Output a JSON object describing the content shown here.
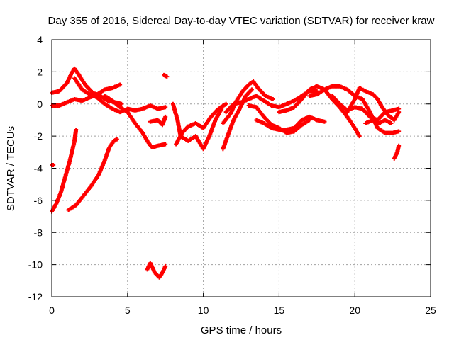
{
  "chart_data": {
    "type": "scatter",
    "title": "Day 355 of 2016, Sidereal Day-to-day VTEC variation (SDTVAR) for receiver kraw",
    "xlabel": "GPS time / hours",
    "ylabel": "SDTVAR / TECUs",
    "xlim": [
      0,
      25
    ],
    "ylim": [
      -12,
      4
    ],
    "xticks": [
      0,
      5,
      10,
      15,
      20,
      25
    ],
    "yticks": [
      -12,
      -10,
      -8,
      -6,
      -4,
      -2,
      0,
      2,
      4
    ],
    "grid": true,
    "marker_color": "#ff0000",
    "series": [
      {
        "name": "s1",
        "points": [
          [
            0.0,
            0.7
          ],
          [
            0.5,
            0.8
          ],
          [
            1.0,
            1.3
          ],
          [
            1.3,
            1.9
          ],
          [
            1.5,
            2.2
          ],
          [
            1.8,
            1.8
          ],
          [
            2.2,
            1.2
          ],
          [
            2.7,
            0.7
          ],
          [
            3.2,
            0.5
          ],
          [
            3.7,
            0.2
          ],
          [
            4.2,
            0.1
          ],
          [
            4.6,
            0.0
          ]
        ]
      },
      {
        "name": "s2",
        "points": [
          [
            0.0,
            -0.1
          ],
          [
            0.5,
            -0.1
          ],
          [
            1.0,
            0.1
          ],
          [
            1.5,
            0.3
          ],
          [
            2.0,
            0.2
          ],
          [
            2.5,
            0.4
          ],
          [
            3.0,
            0.6
          ],
          [
            3.5,
            0.9
          ],
          [
            4.0,
            1.0
          ],
          [
            4.5,
            1.2
          ]
        ]
      },
      {
        "name": "s3",
        "points": [
          [
            1.5,
            1.6
          ],
          [
            2.0,
            0.9
          ],
          [
            2.5,
            0.6
          ],
          [
            3.0,
            0.4
          ],
          [
            3.5,
            0.0
          ],
          [
            4.0,
            -0.3
          ],
          [
            4.5,
            -0.5
          ],
          [
            5.0,
            -0.3
          ],
          [
            5.5,
            -0.4
          ],
          [
            6.0,
            -0.3
          ],
          [
            6.5,
            -0.1
          ],
          [
            7.0,
            -0.3
          ],
          [
            7.5,
            -0.2
          ]
        ]
      },
      {
        "name": "s4",
        "points": [
          [
            3.5,
            0.5
          ],
          [
            4.0,
            0.2
          ],
          [
            4.5,
            -0.2
          ],
          [
            5.0,
            -0.5
          ],
          [
            5.5,
            -1.2
          ],
          [
            6.0,
            -1.8
          ],
          [
            6.3,
            -2.3
          ],
          [
            6.6,
            -2.7
          ],
          [
            7.0,
            -2.6
          ],
          [
            7.5,
            -2.5
          ]
        ]
      },
      {
        "name": "s5",
        "points": [
          [
            6.5,
            -1.1
          ],
          [
            7.0,
            -1.0
          ],
          [
            7.3,
            -1.3
          ],
          [
            7.5,
            -0.8
          ]
        ]
      },
      {
        "name": "s6",
        "points": [
          [
            7.4,
            1.8
          ],
          [
            7.6,
            1.7
          ]
        ]
      },
      {
        "name": "s7",
        "points": [
          [
            0.0,
            -6.7
          ],
          [
            0.3,
            -6.2
          ],
          [
            0.6,
            -5.5
          ],
          [
            0.9,
            -4.5
          ],
          [
            1.2,
            -3.5
          ],
          [
            1.5,
            -2.3
          ],
          [
            1.6,
            -1.6
          ]
        ]
      },
      {
        "name": "s8",
        "points": [
          [
            1.1,
            -6.6
          ],
          [
            1.6,
            -6.3
          ],
          [
            2.1,
            -5.7
          ],
          [
            2.6,
            -5.1
          ],
          [
            3.1,
            -4.4
          ],
          [
            3.5,
            -3.5
          ],
          [
            3.8,
            -2.7
          ],
          [
            4.1,
            -2.3
          ],
          [
            4.3,
            -2.2
          ]
        ]
      },
      {
        "name": "s9",
        "points": [
          [
            0.0,
            -3.8
          ],
          [
            0.1,
            -3.8
          ]
        ]
      },
      {
        "name": "s10",
        "points": [
          [
            6.3,
            -10.3
          ],
          [
            6.5,
            -9.9
          ],
          [
            6.8,
            -10.5
          ],
          [
            7.1,
            -10.8
          ],
          [
            7.3,
            -10.5
          ],
          [
            7.5,
            -10.1
          ]
        ]
      },
      {
        "name": "s11",
        "points": [
          [
            8.0,
            0.0
          ],
          [
            8.3,
            -1.0
          ],
          [
            8.5,
            -2.0
          ],
          [
            9.0,
            -2.3
          ],
          [
            9.5,
            -2.0
          ],
          [
            10.0,
            -2.8
          ],
          [
            10.4,
            -2.0
          ],
          [
            10.8,
            -1.0
          ],
          [
            11.2,
            -0.3
          ]
        ]
      },
      {
        "name": "s12",
        "points": [
          [
            8.2,
            -2.5
          ],
          [
            8.6,
            -1.8
          ],
          [
            9.0,
            -1.4
          ],
          [
            9.5,
            -1.2
          ],
          [
            10.0,
            -1.5
          ],
          [
            10.5,
            -0.8
          ],
          [
            11.0,
            -0.3
          ],
          [
            11.5,
            0.0
          ]
        ]
      },
      {
        "name": "s13",
        "points": [
          [
            11.3,
            -1.2
          ],
          [
            11.8,
            -0.6
          ],
          [
            12.2,
            0.2
          ],
          [
            12.6,
            0.8
          ],
          [
            13.0,
            1.2
          ],
          [
            13.3,
            1.4
          ],
          [
            13.6,
            1.0
          ],
          [
            14.1,
            0.5
          ],
          [
            14.6,
            0.3
          ]
        ]
      },
      {
        "name": "s14",
        "points": [
          [
            11.3,
            -2.8
          ],
          [
            11.6,
            -2.0
          ],
          [
            12.0,
            -1.0
          ],
          [
            12.4,
            -0.3
          ],
          [
            12.8,
            0.5
          ],
          [
            13.2,
            0.9
          ]
        ]
      },
      {
        "name": "s15",
        "points": [
          [
            11.5,
            -0.5
          ],
          [
            12.0,
            0.0
          ],
          [
            12.5,
            0.1
          ],
          [
            13.0,
            0.3
          ],
          [
            13.5,
            0.5
          ],
          [
            14.0,
            0.2
          ],
          [
            14.5,
            -0.1
          ],
          [
            15.0,
            -0.2
          ],
          [
            15.5,
            0.0
          ],
          [
            16.0,
            0.2
          ],
          [
            16.5,
            0.5
          ],
          [
            17.0,
            0.8
          ],
          [
            17.5,
            0.8
          ]
        ]
      },
      {
        "name": "s16",
        "points": [
          [
            13.5,
            -1.0
          ],
          [
            14.0,
            -1.2
          ],
          [
            14.5,
            -1.5
          ],
          [
            15.0,
            -1.6
          ],
          [
            15.5,
            -1.6
          ],
          [
            16.0,
            -1.5
          ],
          [
            16.5,
            -1.0
          ],
          [
            17.0,
            -0.8
          ],
          [
            17.5,
            -1.0
          ],
          [
            18.0,
            -1.1
          ]
        ]
      },
      {
        "name": "s17",
        "points": [
          [
            13.0,
            -0.1
          ],
          [
            13.5,
            -0.2
          ],
          [
            14.0,
            -0.8
          ],
          [
            14.5,
            -1.3
          ],
          [
            15.0,
            -1.5
          ],
          [
            15.5,
            -1.8
          ],
          [
            16.0,
            -1.7
          ],
          [
            16.5,
            -1.3
          ],
          [
            17.0,
            -1.0
          ]
        ]
      },
      {
        "name": "s18",
        "points": [
          [
            15.0,
            -0.5
          ],
          [
            15.5,
            -0.4
          ],
          [
            16.0,
            -0.2
          ],
          [
            16.5,
            0.3
          ],
          [
            17.0,
            0.9
          ],
          [
            17.5,
            1.1
          ],
          [
            18.0,
            0.9
          ],
          [
            18.5,
            0.3
          ],
          [
            19.0,
            -0.2
          ],
          [
            19.5,
            -0.8
          ],
          [
            20.0,
            -1.5
          ],
          [
            20.3,
            -2.0
          ]
        ]
      },
      {
        "name": "s19",
        "points": [
          [
            17.0,
            0.5
          ],
          [
            17.5,
            0.6
          ],
          [
            18.0,
            0.9
          ],
          [
            18.5,
            1.1
          ],
          [
            19.0,
            1.1
          ],
          [
            19.5,
            0.9
          ],
          [
            20.0,
            0.5
          ],
          [
            20.5,
            0.3
          ],
          [
            21.0,
            -0.5
          ],
          [
            21.5,
            -1.5
          ],
          [
            22.0,
            -1.8
          ],
          [
            22.5,
            -1.8
          ],
          [
            22.9,
            -1.7
          ]
        ]
      },
      {
        "name": "s20",
        "points": [
          [
            18.5,
            0.5
          ],
          [
            19.0,
            0.0
          ],
          [
            19.5,
            -0.4
          ],
          [
            20.0,
            -0.2
          ],
          [
            20.5,
            -0.3
          ],
          [
            21.0,
            -0.8
          ],
          [
            21.5,
            -1.0
          ],
          [
            22.0,
            -0.5
          ],
          [
            22.5,
            -0.4
          ],
          [
            22.9,
            -0.3
          ]
        ]
      },
      {
        "name": "s21",
        "points": [
          [
            19.5,
            -0.5
          ],
          [
            20.0,
            0.3
          ],
          [
            20.3,
            1.0
          ],
          [
            20.7,
            0.8
          ],
          [
            21.2,
            0.6
          ],
          [
            21.5,
            0.3
          ],
          [
            21.8,
            -0.2
          ],
          [
            22.2,
            -0.7
          ],
          [
            22.6,
            -1.0
          ],
          [
            22.9,
            -0.5
          ]
        ]
      },
      {
        "name": "s22",
        "points": [
          [
            22.6,
            -3.4
          ],
          [
            22.8,
            -3.0
          ],
          [
            22.9,
            -2.6
          ]
        ]
      },
      {
        "name": "s23",
        "points": [
          [
            20.7,
            -1.2
          ],
          [
            21.2,
            -1.0
          ],
          [
            21.6,
            -1.2
          ],
          [
            22.0,
            -1.0
          ],
          [
            22.4,
            -1.2
          ]
        ]
      }
    ]
  }
}
